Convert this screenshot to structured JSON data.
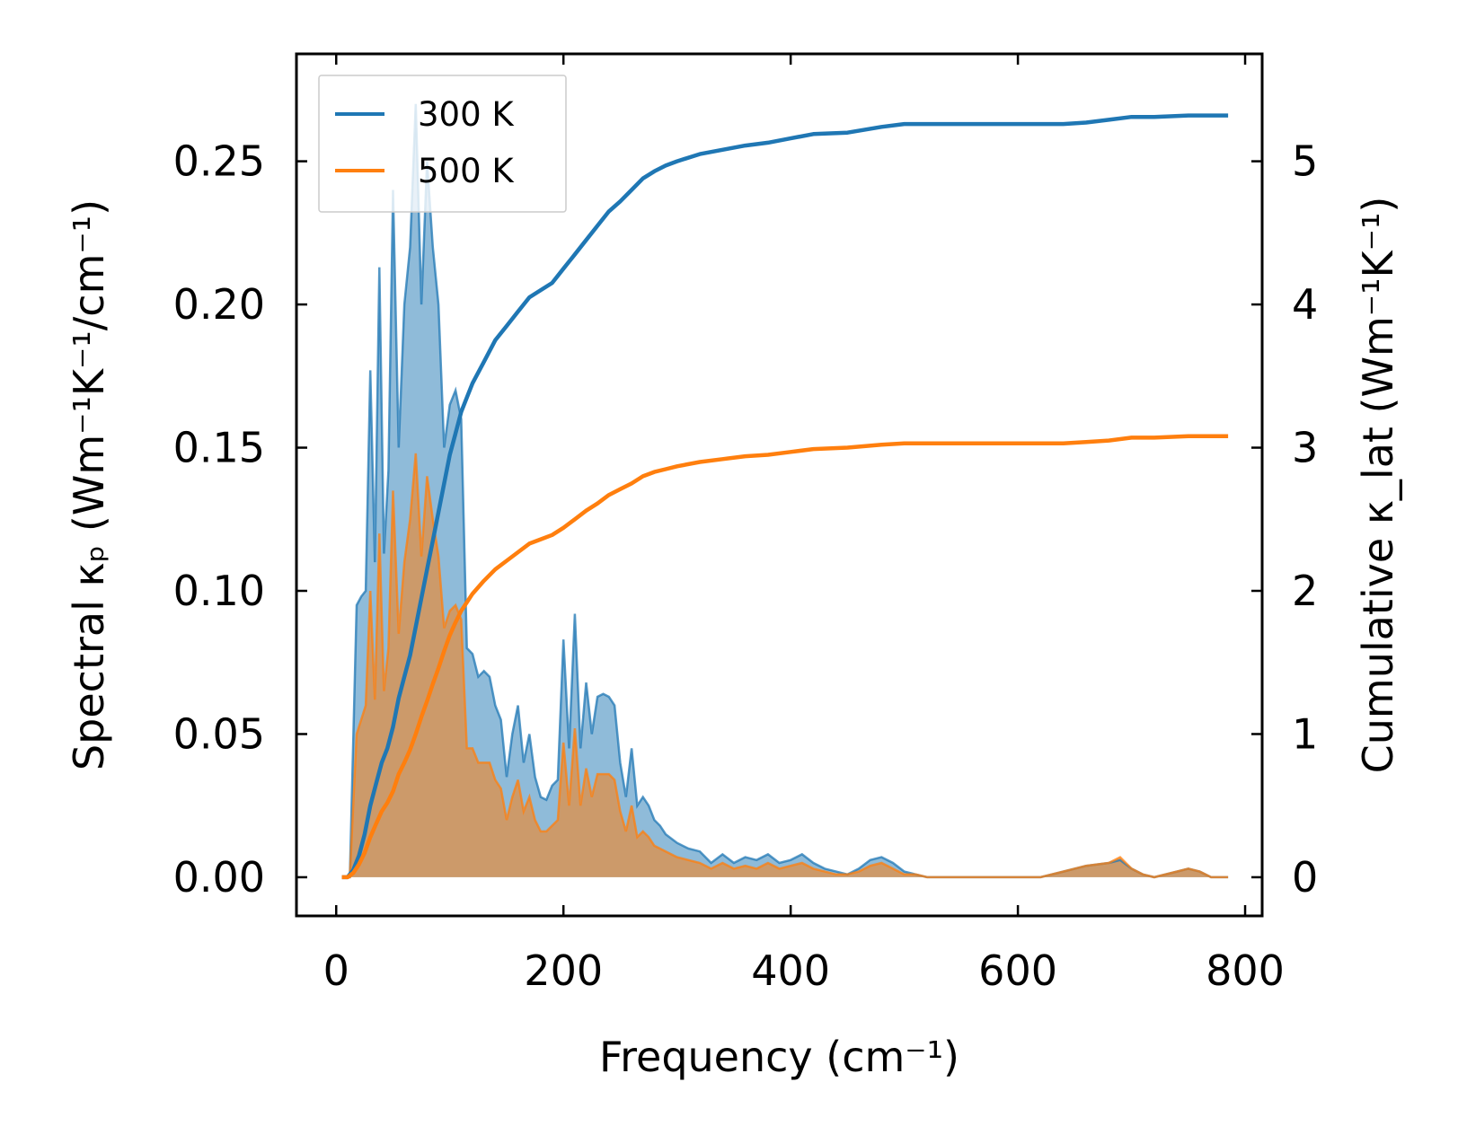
{
  "chart_data": {
    "type": "line",
    "title": "",
    "xlabel": "Frequency (cm⁻¹)",
    "ylabel_left": "Spectral κₚ (Wm⁻¹K⁻¹/cm⁻¹)",
    "ylabel_right": "Cumulative κ_lat (Wm⁻¹K⁻¹)",
    "xlim": [
      -35,
      815
    ],
    "ylim_left": [
      -0.0135,
      0.2875
    ],
    "ylim_right": [
      -0.27,
      5.75
    ],
    "xticks": [
      0,
      200,
      400,
      600,
      800
    ],
    "xtick_labels": [
      "0",
      "200",
      "400",
      "600",
      "800"
    ],
    "yticks_left": [
      0.0,
      0.05,
      0.1,
      0.15,
      0.2,
      0.25
    ],
    "ytick_labels_left": [
      "0.00",
      "0.05",
      "0.10",
      "0.15",
      "0.20",
      "0.25"
    ],
    "yticks_right": [
      0,
      1,
      2,
      3,
      4,
      5
    ],
    "ytick_labels_right": [
      "0",
      "1",
      "2",
      "3",
      "4",
      "5"
    ],
    "grid": false,
    "legend_position": "top-left",
    "series": [
      {
        "name": "300 K",
        "color": "#1f77b4",
        "spectral": [
          [
            5,
            0
          ],
          [
            12,
            0
          ],
          [
            18,
            0.095
          ],
          [
            22,
            0.098
          ],
          [
            26,
            0.1
          ],
          [
            30,
            0.177
          ],
          [
            34,
            0.11
          ],
          [
            38,
            0.213
          ],
          [
            42,
            0.113
          ],
          [
            46,
            0.142
          ],
          [
            50,
            0.24
          ],
          [
            55,
            0.15
          ],
          [
            60,
            0.2
          ],
          [
            65,
            0.22
          ],
          [
            70,
            0.27
          ],
          [
            75,
            0.2
          ],
          [
            80,
            0.25
          ],
          [
            85,
            0.22
          ],
          [
            90,
            0.2
          ],
          [
            95,
            0.15
          ],
          [
            100,
            0.165
          ],
          [
            105,
            0.17
          ],
          [
            110,
            0.16
          ],
          [
            115,
            0.08
          ],
          [
            120,
            0.078
          ],
          [
            125,
            0.07
          ],
          [
            130,
            0.072
          ],
          [
            135,
            0.07
          ],
          [
            140,
            0.06
          ],
          [
            145,
            0.055
          ],
          [
            150,
            0.035
          ],
          [
            155,
            0.05
          ],
          [
            160,
            0.06
          ],
          [
            165,
            0.04
          ],
          [
            170,
            0.05
          ],
          [
            175,
            0.035
          ],
          [
            180,
            0.028
          ],
          [
            185,
            0.027
          ],
          [
            190,
            0.032
          ],
          [
            195,
            0.034
          ],
          [
            200,
            0.083
          ],
          [
            205,
            0.045
          ],
          [
            210,
            0.092
          ],
          [
            215,
            0.045
          ],
          [
            220,
            0.068
          ],
          [
            225,
            0.05
          ],
          [
            230,
            0.063
          ],
          [
            235,
            0.064
          ],
          [
            240,
            0.063
          ],
          [
            245,
            0.06
          ],
          [
            250,
            0.04
          ],
          [
            255,
            0.028
          ],
          [
            260,
            0.045
          ],
          [
            265,
            0.025
          ],
          [
            270,
            0.028
          ],
          [
            275,
            0.025
          ],
          [
            280,
            0.02
          ],
          [
            285,
            0.018
          ],
          [
            290,
            0.015
          ],
          [
            300,
            0.012
          ],
          [
            310,
            0.01
          ],
          [
            320,
            0.009
          ],
          [
            330,
            0.005
          ],
          [
            340,
            0.008
          ],
          [
            350,
            0.005
          ],
          [
            360,
            0.007
          ],
          [
            370,
            0.006
          ],
          [
            380,
            0.008
          ],
          [
            390,
            0.005
          ],
          [
            400,
            0.006
          ],
          [
            410,
            0.008
          ],
          [
            420,
            0.005
          ],
          [
            430,
            0.003
          ],
          [
            440,
            0.002
          ],
          [
            450,
            0.001
          ],
          [
            460,
            0.003
          ],
          [
            470,
            0.006
          ],
          [
            480,
            0.007
          ],
          [
            490,
            0.005
          ],
          [
            500,
            0.002
          ],
          [
            510,
            0.001
          ],
          [
            520,
            0
          ],
          [
            560,
            0
          ],
          [
            600,
            0
          ],
          [
            620,
            0
          ],
          [
            640,
            0.002
          ],
          [
            660,
            0.004
          ],
          [
            680,
            0.005
          ],
          [
            690,
            0.006
          ],
          [
            700,
            0.003
          ],
          [
            710,
            0.001
          ],
          [
            720,
            0
          ],
          [
            740,
            0.002
          ],
          [
            750,
            0.003
          ],
          [
            760,
            0.002
          ],
          [
            770,
            0
          ],
          [
            785,
            0
          ]
        ],
        "cumulative": [
          [
            5,
            0
          ],
          [
            10,
            0
          ],
          [
            15,
            0.05
          ],
          [
            20,
            0.15
          ],
          [
            25,
            0.3
          ],
          [
            30,
            0.5
          ],
          [
            35,
            0.65
          ],
          [
            40,
            0.8
          ],
          [
            45,
            0.9
          ],
          [
            50,
            1.05
          ],
          [
            55,
            1.25
          ],
          [
            60,
            1.4
          ],
          [
            65,
            1.55
          ],
          [
            70,
            1.75
          ],
          [
            75,
            1.95
          ],
          [
            80,
            2.15
          ],
          [
            85,
            2.35
          ],
          [
            90,
            2.55
          ],
          [
            95,
            2.75
          ],
          [
            100,
            2.95
          ],
          [
            105,
            3.1
          ],
          [
            110,
            3.25
          ],
          [
            115,
            3.35
          ],
          [
            120,
            3.45
          ],
          [
            130,
            3.6
          ],
          [
            140,
            3.75
          ],
          [
            150,
            3.85
          ],
          [
            160,
            3.95
          ],
          [
            170,
            4.05
          ],
          [
            180,
            4.1
          ],
          [
            190,
            4.15
          ],
          [
            200,
            4.25
          ],
          [
            210,
            4.35
          ],
          [
            220,
            4.45
          ],
          [
            230,
            4.55
          ],
          [
            240,
            4.65
          ],
          [
            250,
            4.72
          ],
          [
            260,
            4.8
          ],
          [
            270,
            4.88
          ],
          [
            280,
            4.93
          ],
          [
            290,
            4.97
          ],
          [
            300,
            5.0
          ],
          [
            320,
            5.05
          ],
          [
            340,
            5.08
          ],
          [
            360,
            5.11
          ],
          [
            380,
            5.13
          ],
          [
            400,
            5.16
          ],
          [
            420,
            5.19
          ],
          [
            450,
            5.2
          ],
          [
            480,
            5.24
          ],
          [
            500,
            5.26
          ],
          [
            550,
            5.26
          ],
          [
            600,
            5.26
          ],
          [
            640,
            5.26
          ],
          [
            660,
            5.27
          ],
          [
            680,
            5.29
          ],
          [
            700,
            5.31
          ],
          [
            720,
            5.31
          ],
          [
            750,
            5.32
          ],
          [
            785,
            5.32
          ]
        ]
      },
      {
        "name": "500 K",
        "color": "#ff7f0e",
        "spectral": [
          [
            5,
            0
          ],
          [
            12,
            0
          ],
          [
            18,
            0.05
          ],
          [
            22,
            0.055
          ],
          [
            26,
            0.06
          ],
          [
            30,
            0.1
          ],
          [
            34,
            0.062
          ],
          [
            38,
            0.12
          ],
          [
            42,
            0.065
          ],
          [
            46,
            0.08
          ],
          [
            50,
            0.135
          ],
          [
            55,
            0.085
          ],
          [
            60,
            0.11
          ],
          [
            65,
            0.125
          ],
          [
            70,
            0.148
          ],
          [
            75,
            0.112
          ],
          [
            80,
            0.14
          ],
          [
            85,
            0.125
          ],
          [
            90,
            0.112
          ],
          [
            95,
            0.087
          ],
          [
            100,
            0.093
          ],
          [
            105,
            0.095
          ],
          [
            110,
            0.09
          ],
          [
            115,
            0.045
          ],
          [
            120,
            0.045
          ],
          [
            125,
            0.04
          ],
          [
            130,
            0.04
          ],
          [
            135,
            0.04
          ],
          [
            140,
            0.034
          ],
          [
            145,
            0.031
          ],
          [
            150,
            0.02
          ],
          [
            155,
            0.028
          ],
          [
            160,
            0.034
          ],
          [
            165,
            0.023
          ],
          [
            170,
            0.028
          ],
          [
            175,
            0.02
          ],
          [
            180,
            0.016
          ],
          [
            185,
            0.016
          ],
          [
            190,
            0.018
          ],
          [
            195,
            0.02
          ],
          [
            200,
            0.047
          ],
          [
            205,
            0.025
          ],
          [
            210,
            0.052
          ],
          [
            215,
            0.025
          ],
          [
            220,
            0.038
          ],
          [
            225,
            0.028
          ],
          [
            230,
            0.036
          ],
          [
            235,
            0.036
          ],
          [
            240,
            0.036
          ],
          [
            245,
            0.034
          ],
          [
            250,
            0.023
          ],
          [
            255,
            0.016
          ],
          [
            260,
            0.025
          ],
          [
            265,
            0.014
          ],
          [
            270,
            0.016
          ],
          [
            275,
            0.014
          ],
          [
            280,
            0.011
          ],
          [
            285,
            0.01
          ],
          [
            290,
            0.009
          ],
          [
            300,
            0.007
          ],
          [
            310,
            0.006
          ],
          [
            320,
            0.005
          ],
          [
            330,
            0.003
          ],
          [
            340,
            0.005
          ],
          [
            350,
            0.003
          ],
          [
            360,
            0.004
          ],
          [
            370,
            0.003
          ],
          [
            380,
            0.005
          ],
          [
            390,
            0.003
          ],
          [
            400,
            0.004
          ],
          [
            410,
            0.005
          ],
          [
            420,
            0.003
          ],
          [
            430,
            0.002
          ],
          [
            440,
            0.001
          ],
          [
            450,
            0.001
          ],
          [
            460,
            0.002
          ],
          [
            470,
            0.004
          ],
          [
            480,
            0.005
          ],
          [
            490,
            0.003
          ],
          [
            500,
            0.001
          ],
          [
            510,
            0.001
          ],
          [
            520,
            0
          ],
          [
            560,
            0
          ],
          [
            600,
            0
          ],
          [
            620,
            0
          ],
          [
            640,
            0.002
          ],
          [
            660,
            0.004
          ],
          [
            680,
            0.005
          ],
          [
            690,
            0.007
          ],
          [
            700,
            0.003
          ],
          [
            710,
            0.001
          ],
          [
            720,
            0
          ],
          [
            740,
            0.002
          ],
          [
            750,
            0.003
          ],
          [
            760,
            0.002
          ],
          [
            770,
            0
          ],
          [
            785,
            0
          ]
        ],
        "cumulative": [
          [
            5,
            0
          ],
          [
            10,
            0
          ],
          [
            15,
            0.03
          ],
          [
            20,
            0.09
          ],
          [
            25,
            0.17
          ],
          [
            30,
            0.28
          ],
          [
            35,
            0.37
          ],
          [
            40,
            0.46
          ],
          [
            45,
            0.52
          ],
          [
            50,
            0.6
          ],
          [
            55,
            0.72
          ],
          [
            60,
            0.8
          ],
          [
            65,
            0.89
          ],
          [
            70,
            1.0
          ],
          [
            75,
            1.12
          ],
          [
            80,
            1.23
          ],
          [
            85,
            1.35
          ],
          [
            90,
            1.46
          ],
          [
            95,
            1.58
          ],
          [
            100,
            1.69
          ],
          [
            105,
            1.78
          ],
          [
            110,
            1.86
          ],
          [
            115,
            1.92
          ],
          [
            120,
            1.98
          ],
          [
            130,
            2.07
          ],
          [
            140,
            2.15
          ],
          [
            150,
            2.21
          ],
          [
            160,
            2.27
          ],
          [
            170,
            2.33
          ],
          [
            180,
            2.36
          ],
          [
            190,
            2.39
          ],
          [
            200,
            2.44
          ],
          [
            210,
            2.5
          ],
          [
            220,
            2.56
          ],
          [
            230,
            2.61
          ],
          [
            240,
            2.67
          ],
          [
            250,
            2.71
          ],
          [
            260,
            2.75
          ],
          [
            270,
            2.8
          ],
          [
            280,
            2.83
          ],
          [
            290,
            2.85
          ],
          [
            300,
            2.87
          ],
          [
            320,
            2.9
          ],
          [
            340,
            2.92
          ],
          [
            360,
            2.94
          ],
          [
            380,
            2.95
          ],
          [
            400,
            2.97
          ],
          [
            420,
            2.99
          ],
          [
            450,
            3.0
          ],
          [
            480,
            3.02
          ],
          [
            500,
            3.03
          ],
          [
            550,
            3.03
          ],
          [
            600,
            3.03
          ],
          [
            640,
            3.03
          ],
          [
            660,
            3.04
          ],
          [
            680,
            3.05
          ],
          [
            700,
            3.07
          ],
          [
            720,
            3.07
          ],
          [
            750,
            3.08
          ],
          [
            785,
            3.08
          ]
        ]
      }
    ]
  }
}
